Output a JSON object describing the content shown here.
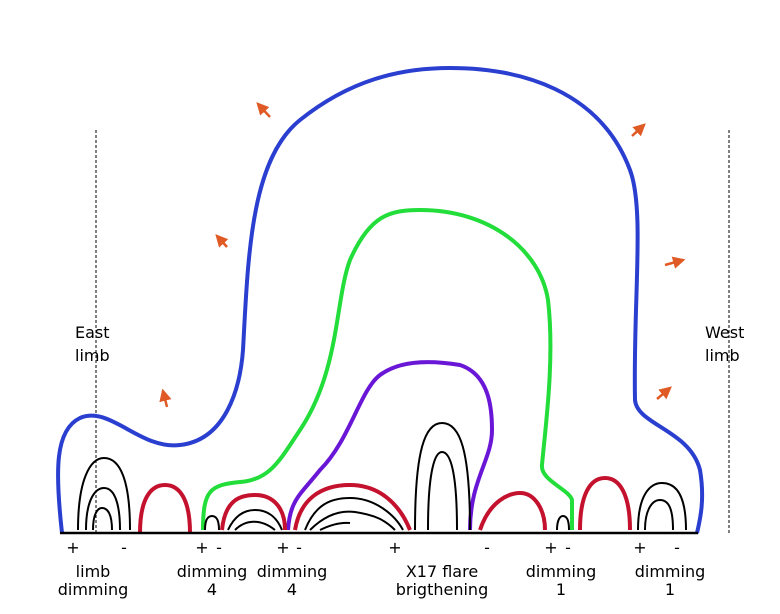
{
  "limbs": [
    {
      "lines": [
        "East",
        "limb"
      ]
    },
    {
      "lines": [
        "West",
        "limb"
      ]
    }
  ],
  "polarities": [
    "+",
    "-",
    "+",
    "-",
    "+",
    "-",
    "+",
    "-",
    "+",
    "-",
    "+",
    "-"
  ],
  "regions": [
    {
      "lines": [
        "limb",
        "dimming"
      ]
    },
    {
      "lines": [
        "dimming",
        "4"
      ]
    },
    {
      "lines": [
        "dimming",
        "4"
      ]
    },
    {
      "lines": [
        "X17 flare",
        "brigthening"
      ]
    },
    {
      "lines": [
        "dimming",
        "1"
      ]
    },
    {
      "lines": [
        "dimming",
        "1"
      ]
    }
  ]
}
